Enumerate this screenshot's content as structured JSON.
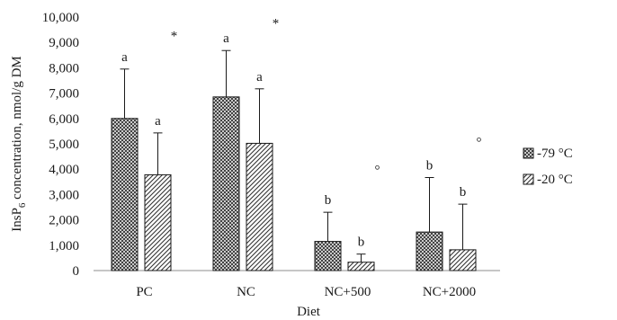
{
  "chart_data": {
    "type": "bar",
    "xlabel": "Diet",
    "ylabel": {
      "prefix": "InsP",
      "subscript": "6",
      "suffix": " concentration, nmol/g DM"
    },
    "ylim": [
      0,
      10000
    ],
    "yticks": [
      "0",
      "1,000",
      "2,000",
      "3,000",
      "4,000",
      "5,000",
      "6,000",
      "7,000",
      "8,000",
      "9,000",
      "10,000"
    ],
    "grid": false,
    "legend_position": "right",
    "categories": [
      "PC",
      "NC",
      "NC+500",
      "NC+2000"
    ],
    "series": [
      {
        "name": "-79 °C",
        "pattern": "crosshatch",
        "values": [
          6000,
          6850,
          1150,
          1520
        ],
        "error": [
          1950,
          1830,
          1150,
          2150
        ],
        "letters": [
          "a",
          "a",
          "b",
          "b"
        ]
      },
      {
        "name": "-20 °C",
        "pattern": "diagonal",
        "values": [
          3780,
          5020,
          330,
          820
        ],
        "error": [
          1650,
          2150,
          320,
          1800
        ],
        "letters": [
          "a",
          "a",
          "b",
          "b"
        ]
      }
    ],
    "category_marks": [
      {
        "text": "*",
        "value": 9300
      },
      {
        "text": "*",
        "value": 9800
      },
      {
        "text": "°",
        "value": 4000
      },
      {
        "text": "°",
        "value": 5100
      }
    ],
    "colors": {
      "bar_fill": "#ffffff",
      "bar_stroke": "#1a1a1a",
      "hatch": "#333333",
      "axis": "#8c8c8c"
    }
  }
}
